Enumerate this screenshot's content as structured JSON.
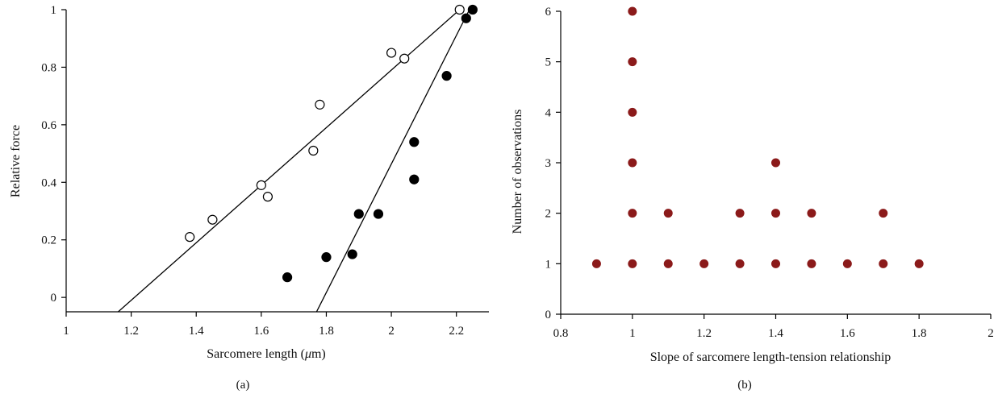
{
  "chart_data": [
    {
      "type": "scatter",
      "panel_label": "(a)",
      "xlabel": "Sarcomere length (",
      "xlabel_unit": "μ",
      "xlabel_tail": "m)",
      "ylabel": "Relative force",
      "xlim": [
        1,
        2.3
      ],
      "ylim": [
        -0.05,
        1
      ],
      "xticks": [
        1,
        1.2,
        1.4,
        1.6,
        1.8,
        2,
        2.2
      ],
      "xtick_labels": [
        "1",
        "1.2",
        "1.4",
        "1.6",
        "1.8",
        "2",
        "2.2"
      ],
      "yticks": [
        0,
        0.2,
        0.4,
        0.6,
        0.8,
        1
      ],
      "ytick_labels": [
        "0",
        "0.2",
        "0.4",
        "0.6",
        "0.8",
        "1"
      ],
      "series": [
        {
          "marker": "open-circle",
          "points": [
            [
              1.38,
              0.21
            ],
            [
              1.45,
              0.27
            ],
            [
              1.6,
              0.39
            ],
            [
              1.62,
              0.35
            ],
            [
              1.76,
              0.51
            ],
            [
              1.78,
              0.67
            ],
            [
              2.0,
              0.85
            ],
            [
              2.04,
              0.83
            ],
            [
              2.21,
              1.0
            ]
          ],
          "fit_line": [
            [
              1.16,
              -0.05
            ],
            [
              2.21,
              1.0
            ]
          ]
        },
        {
          "marker": "filled-circle",
          "points": [
            [
              1.68,
              0.07
            ],
            [
              1.8,
              0.14
            ],
            [
              1.88,
              0.15
            ],
            [
              1.9,
              0.29
            ],
            [
              1.96,
              0.29
            ],
            [
              2.07,
              0.41
            ],
            [
              2.07,
              0.54
            ],
            [
              2.17,
              0.77
            ],
            [
              2.23,
              0.97
            ],
            [
              2.25,
              1.0
            ]
          ],
          "fit_line": [
            [
              1.77,
              -0.05
            ],
            [
              2.24,
              1.0
            ]
          ]
        }
      ],
      "colors": {
        "marker": "#000000",
        "line": "#000000"
      }
    },
    {
      "type": "scatter",
      "panel_label": "(b)",
      "xlabel": "Slope of sarcomere length-tension relationship",
      "ylabel": "Number of observations",
      "xlim": [
        0.8,
        2
      ],
      "ylim": [
        0,
        6
      ],
      "xticks": [
        0.8,
        1,
        1.2,
        1.4,
        1.6,
        1.8,
        2
      ],
      "xtick_labels": [
        "0.8",
        "1",
        "1.2",
        "1.4",
        "1.6",
        "1.8",
        "2"
      ],
      "yticks": [
        0,
        1,
        2,
        3,
        4,
        5,
        6
      ],
      "ytick_labels": [
        "0",
        "1",
        "2",
        "3",
        "4",
        "5",
        "6"
      ],
      "points": [
        [
          0.9,
          1
        ],
        [
          1,
          1
        ],
        [
          1.1,
          1
        ],
        [
          1.2,
          1
        ],
        [
          1.3,
          1
        ],
        [
          1.4,
          1
        ],
        [
          1.5,
          1
        ],
        [
          1.6,
          1
        ],
        [
          1.7,
          1
        ],
        [
          1.8,
          1
        ],
        [
          1,
          2
        ],
        [
          1.1,
          2
        ],
        [
          1.3,
          2
        ],
        [
          1.4,
          2
        ],
        [
          1.5,
          2
        ],
        [
          1.7,
          2
        ],
        [
          1,
          3
        ],
        [
          1.4,
          3
        ],
        [
          1,
          4
        ],
        [
          1,
          5
        ],
        [
          1,
          6
        ]
      ],
      "colors": {
        "marker": "#8b1a1a"
      }
    }
  ]
}
